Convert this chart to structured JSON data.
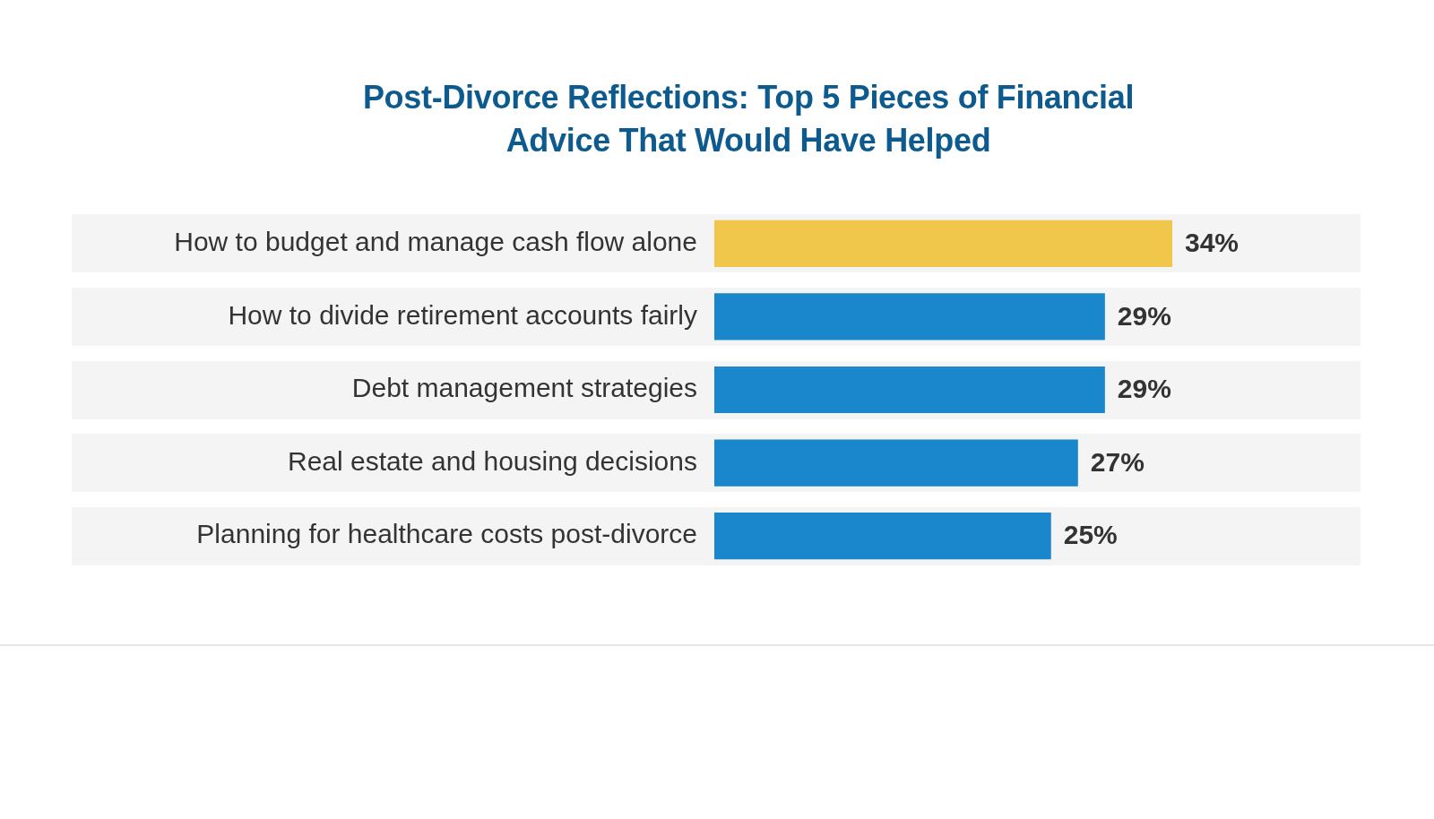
{
  "chart_data": {
    "type": "bar",
    "orientation": "horizontal",
    "title": "Post-Divorce Reflections: Top 5 Pieces of Financial Advice That Would Have Helped",
    "categories": [
      "How to budget and manage cash flow alone",
      "How to divide retirement accounts fairly",
      "Debt management strategies",
      "Real estate and housing decisions",
      "Planning for healthcare costs post-divorce"
    ],
    "values": [
      34,
      29,
      29,
      27,
      25
    ],
    "value_labels": [
      "34%",
      "29%",
      "29%",
      "27%",
      "25%"
    ],
    "colors": [
      "#f0c64b",
      "#1a86cb",
      "#1a86cb",
      "#1a86cb",
      "#1a86cb"
    ],
    "tick_labels": "y"
  }
}
